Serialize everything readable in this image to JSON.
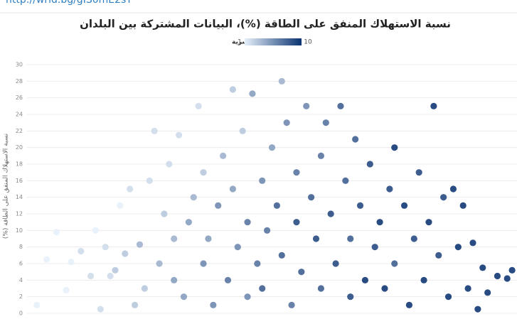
{
  "header": {
    "link": "http://wrld.bg/gIS0mE2sY"
  },
  "chart_data": {
    "type": "scatter",
    "title": "نسبة الاستهلاك المنفق على الطاقة (%)، البيانات المشتركة بين البلدان",
    "y_label": "نسبة الاستهلاك المنفق على الطاقة (%)",
    "legend_title": "شريحة عشرية",
    "colorlim": [
      1,
      10
    ],
    "color_scale": [
      "#e6f0fa",
      "#0a3270"
    ],
    "xlim": [
      0,
      100
    ],
    "ylim": [
      0,
      30
    ],
    "yticks": [
      0,
      2,
      4,
      6,
      8,
      10,
      12,
      14,
      16,
      18,
      20,
      22,
      24,
      26,
      28,
      30
    ],
    "grid": true,
    "x": [
      2,
      4,
      6,
      8,
      9,
      11,
      13,
      14,
      15,
      16,
      17,
      18,
      19,
      20,
      21,
      22,
      23,
      24,
      25,
      26,
      27,
      28,
      29,
      30,
      30,
      31,
      32,
      33,
      34,
      35,
      36,
      36,
      37,
      38,
      39,
      40,
      41,
      42,
      42,
      43,
      44,
      45,
      45,
      46,
      47,
      48,
      48,
      49,
      50,
      51,
      52,
      52,
      53,
      54,
      55,
      55,
      56,
      57,
      58,
      59,
      60,
      60,
      61,
      62,
      63,
      64,
      65,
      66,
      66,
      67,
      68,
      69,
      70,
      71,
      72,
      73,
      74,
      75,
      75,
      77,
      78,
      79,
      80,
      81,
      82,
      83,
      84,
      85,
      86,
      87,
      88,
      89,
      90,
      91,
      92,
      93,
      94,
      96,
      98,
      99
    ],
    "values": [
      1,
      6.5,
      9.8,
      2.8,
      6.2,
      7.5,
      4.5,
      10,
      0.5,
      8,
      4.5,
      5.2,
      13,
      7.2,
      15,
      1,
      8.3,
      3,
      16,
      22,
      6,
      12,
      18,
      4,
      9,
      21.5,
      2,
      11,
      14,
      25,
      6,
      17,
      9,
      1,
      13,
      19,
      4,
      27,
      15,
      8,
      22,
      11,
      2,
      26.5,
      6,
      16,
      3,
      10,
      20,
      13,
      28,
      7,
      23,
      1,
      17,
      11,
      5,
      25,
      14,
      9,
      19,
      3,
      23,
      12,
      6,
      25,
      16,
      2,
      9,
      21,
      13,
      4,
      18,
      8,
      11,
      3,
      15,
      20,
      6,
      13,
      1,
      9,
      17,
      4,
      11,
      25,
      7,
      14,
      2,
      15,
      8,
      13,
      3,
      8.5,
      0.5,
      5.5,
      2.5,
      4.5,
      4.2,
      5.2
    ],
    "decile": [
      1,
      1,
      1,
      1,
      1,
      2,
      2,
      1,
      2,
      2,
      2,
      3,
      1,
      3,
      2,
      3,
      4,
      3,
      2,
      2,
      4,
      3,
      2,
      5,
      4,
      2,
      5,
      5,
      4,
      2,
      6,
      3,
      5,
      6,
      6,
      4,
      7,
      3,
      5,
      6,
      3,
      7,
      6,
      5,
      7,
      6,
      8,
      7,
      5,
      8,
      4,
      8,
      6,
      7,
      7,
      9,
      8,
      6,
      8,
      9,
      7,
      8,
      7,
      9,
      9,
      8,
      8,
      9,
      8,
      8,
      9,
      10,
      9,
      9,
      10,
      10,
      9,
      10,
      8,
      10,
      10,
      9,
      9,
      10,
      10,
      10,
      9,
      9,
      10,
      10,
      10,
      10,
      10,
      10,
      10,
      10,
      10,
      10,
      10,
      10
    ]
  }
}
